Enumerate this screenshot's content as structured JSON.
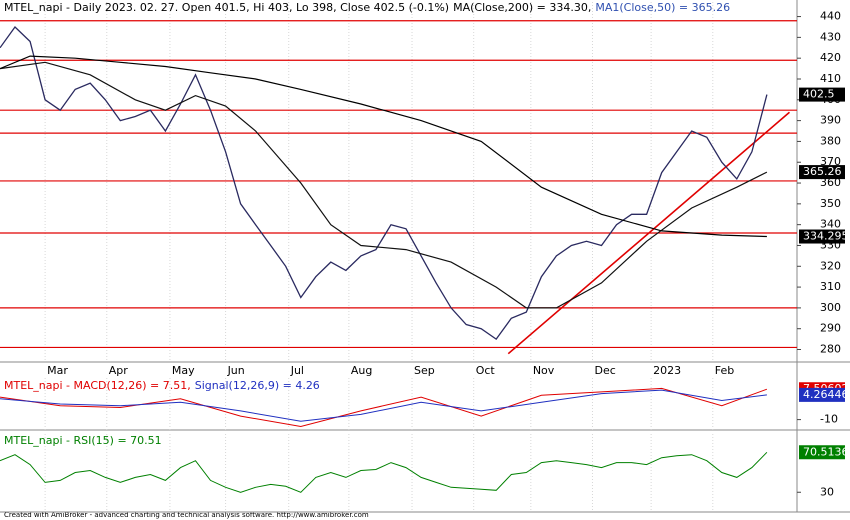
{
  "chart_data": [
    {
      "type": "line",
      "header": [
        {
          "text": "MTEL_napi - Daily 2023. 02. 27. Open 401.5, Hi 403, Lo 398, Close 402.5 (-0.1%)",
          "color": "#000000"
        },
        {
          "text": "MA(Close,200) = 334.30,",
          "color": "#000000"
        },
        {
          "text": "MA1(Close,50) = 365.26",
          "color": "#3050b0"
        }
      ],
      "xlim": [
        0,
        53
      ],
      "xticks": [
        {
          "value": 3,
          "label": "Mar"
        },
        {
          "value": 7.1,
          "label": "Apr"
        },
        {
          "value": 11.3,
          "label": "May"
        },
        {
          "value": 15,
          "label": "Jun"
        },
        {
          "value": 19.2,
          "label": "Jul"
        },
        {
          "value": 23.2,
          "label": "Aug"
        },
        {
          "value": 27.4,
          "label": "Sep"
        },
        {
          "value": 31.5,
          "label": "Oct"
        },
        {
          "value": 35.3,
          "label": "Nov"
        },
        {
          "value": 39.4,
          "label": "Dec"
        },
        {
          "value": 43.3,
          "label": "2023"
        },
        {
          "value": 47.4,
          "label": "Feb"
        }
      ],
      "ylim": [
        274,
        447
      ],
      "yticks": [
        280,
        290,
        300,
        310,
        320,
        330,
        340,
        350,
        360,
        370,
        380,
        390,
        400,
        410,
        420,
        430,
        440
      ],
      "series": [
        {
          "name": "MTEL_napi",
          "color": "#2a2a60",
          "width": 1.3,
          "x": [
            0,
            1,
            2,
            3,
            4,
            5,
            6,
            7,
            8,
            9,
            10,
            11,
            12,
            13,
            14,
            15,
            16,
            17,
            18,
            19,
            20,
            21,
            22,
            23,
            24,
            25,
            26,
            27,
            28,
            29,
            30,
            31,
            32,
            33,
            34,
            35,
            36,
            37,
            38,
            39,
            40,
            41,
            42,
            43,
            44,
            45,
            46,
            47,
            48,
            49,
            50,
            51
          ],
          "values": [
            425,
            435,
            428,
            400,
            395,
            405,
            408,
            400,
            390,
            392,
            395,
            385,
            398,
            412,
            395,
            375,
            350,
            340,
            330,
            320,
            305,
            315,
            322,
            318,
            325,
            328,
            340,
            338,
            325,
            312,
            300,
            292,
            290,
            285,
            295,
            298,
            315,
            325,
            330,
            332,
            330,
            340,
            345,
            345,
            365,
            375,
            385,
            382,
            370,
            362,
            375,
            402.5
          ],
          "value_label": "402.5",
          "label_bg": "#000000"
        },
        {
          "name": "MA1(Close,50)",
          "color": "#111111",
          "width": 1.2,
          "x": [
            0,
            3,
            6,
            9,
            11,
            13,
            15,
            17,
            20,
            22,
            24,
            27,
            30,
            33,
            35,
            37,
            40,
            43,
            46,
            49,
            51
          ],
          "values": [
            415,
            418,
            412,
            400,
            395,
            402,
            397,
            385,
            360,
            340,
            330,
            328,
            322,
            310,
            300,
            300,
            312,
            332,
            348,
            358,
            365.26
          ],
          "value_label": "365.26",
          "label_bg": "#000000"
        },
        {
          "name": "MA(Close,200)",
          "color": "#000000",
          "width": 1.2,
          "x": [
            0,
            2,
            5,
            8,
            11,
            14,
            17,
            20,
            24,
            28,
            32,
            36,
            40,
            44,
            48,
            51
          ],
          "values": [
            415,
            421,
            420,
            418,
            416,
            413,
            410,
            405,
            398,
            390,
            380,
            358,
            345,
            337,
            335,
            334.3
          ],
          "value_label": "334.295",
          "label_bg": "#000000"
        }
      ],
      "hlines": [
        438,
        419,
        395,
        384,
        361,
        336,
        300,
        281
      ],
      "hline_color": "#e00000",
      "trendline": {
        "x": [
          33.8,
          52.5
        ],
        "values": [
          278,
          394
        ],
        "color": "#e00000"
      }
    },
    {
      "type": "line",
      "header": [
        {
          "text": "MTEL_napi - MACD(12,26) = 7.51,",
          "color": "#e00000"
        },
        {
          "text": "Signal(12,26,9) = 4.26",
          "color": "#2030c0"
        }
      ],
      "xlim": [
        0,
        53
      ],
      "ylim": [
        -16,
        14
      ],
      "yticks": [
        -10
      ],
      "series": [
        {
          "name": "MACD(12,26)",
          "color": "#e00000",
          "width": 1,
          "x": [
            0,
            4,
            8,
            12,
            16,
            20,
            24,
            28,
            32,
            36,
            40,
            44,
            48,
            51
          ],
          "values": [
            3,
            -2,
            -3,
            2,
            -8,
            -14,
            -5,
            3,
            -8,
            4,
            6,
            8,
            -2,
            7.51
          ],
          "value_label": "7.50602",
          "label_bg": "#e00000"
        },
        {
          "name": "Signal(12,26,9)",
          "color": "#2030c0",
          "width": 1,
          "x": [
            0,
            4,
            8,
            12,
            16,
            20,
            24,
            28,
            32,
            36,
            40,
            44,
            48,
            51
          ],
          "values": [
            2,
            -1,
            -2,
            0,
            -5,
            -11,
            -7,
            0,
            -5,
            0,
            5,
            7,
            1,
            4.26
          ],
          "value_label": "4.26446",
          "label_bg": "#2030c0"
        }
      ]
    },
    {
      "type": "line",
      "header": [
        {
          "text": "MTEL_napi - RSI(15) = 70.51",
          "color": "#008000"
        }
      ],
      "xlim": [
        0,
        53
      ],
      "ylim": [
        10,
        89
      ],
      "yticks": [
        30
      ],
      "series": [
        {
          "name": "RSI(15)",
          "color": "#008000",
          "width": 1,
          "x": [
            0,
            1,
            2,
            3,
            4,
            5,
            6,
            7,
            8,
            9,
            10,
            11,
            12,
            13,
            14,
            15,
            16,
            17,
            18,
            19,
            20,
            21,
            22,
            23,
            24,
            25,
            26,
            27,
            28,
            29,
            30,
            31,
            32,
            33,
            34,
            35,
            36,
            37,
            38,
            39,
            40,
            41,
            42,
            43,
            44,
            45,
            46,
            47,
            48,
            49,
            50,
            51
          ],
          "values": [
            62,
            68,
            58,
            40,
            42,
            50,
            52,
            45,
            40,
            45,
            48,
            42,
            55,
            62,
            42,
            35,
            30,
            35,
            38,
            36,
            30,
            45,
            50,
            45,
            52,
            53,
            60,
            55,
            45,
            40,
            35,
            34,
            33,
            32,
            48,
            50,
            60,
            62,
            60,
            58,
            55,
            60,
            60,
            58,
            65,
            67,
            68,
            62,
            50,
            45,
            55,
            70.51
          ],
          "value_label": "70.5136",
          "label_bg": "#008000"
        }
      ]
    }
  ],
  "footer": "Created with AmiBroker - advanced charting and technical analysis software. http://www.amibroker.com"
}
